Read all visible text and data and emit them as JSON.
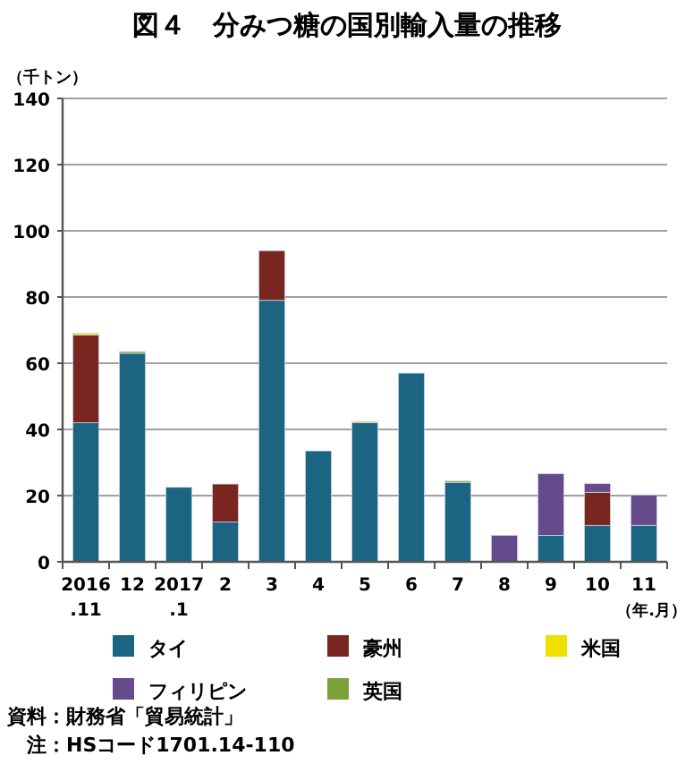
{
  "chart_data": {
    "type": "bar",
    "stacked": true,
    "title": "図４　分みつ糖の国別輸入量の推移",
    "ylabel": "（千トン）",
    "xlabel": "（年.月）",
    "categories": [
      "2016\n.11",
      "12",
      "2017\n.1",
      "2",
      "3",
      "4",
      "5",
      "6",
      "7",
      "8",
      "9",
      "10",
      "11"
    ],
    "series": [
      {
        "name": "タイ",
        "color": "#1b6482",
        "values": [
          42,
          63,
          22.5,
          12,
          79,
          33.5,
          42,
          57,
          24,
          null,
          8,
          11,
          11
        ]
      },
      {
        "name": "豪州",
        "color": "#7a2620",
        "values": [
          26.5,
          null,
          null,
          11.5,
          15,
          null,
          null,
          null,
          null,
          null,
          null,
          10,
          null
        ]
      },
      {
        "name": "米国",
        "color": "#f0e000",
        "values": [
          0.5,
          null,
          null,
          null,
          null,
          null,
          0.4,
          null,
          null,
          null,
          null,
          null,
          null
        ]
      },
      {
        "name": "フィリピン",
        "color": "#654a8c",
        "values": [
          null,
          null,
          null,
          null,
          null,
          null,
          null,
          null,
          null,
          8,
          18.6,
          2.6,
          9.2
        ]
      },
      {
        "name": "英国",
        "color": "#7ba23a",
        "values": [
          null,
          0.5,
          null,
          null,
          null,
          null,
          null,
          null,
          0.4,
          null,
          null,
          null,
          null
        ]
      }
    ],
    "ylim": [
      0,
      140
    ],
    "yticks": [
      0,
      20,
      40,
      60,
      80,
      100,
      120,
      140
    ],
    "grid": "y",
    "legend": "bottom",
    "annotations": [
      "資料：財務省「貿易統計」",
      "注：HSコード1701.14-110"
    ]
  }
}
